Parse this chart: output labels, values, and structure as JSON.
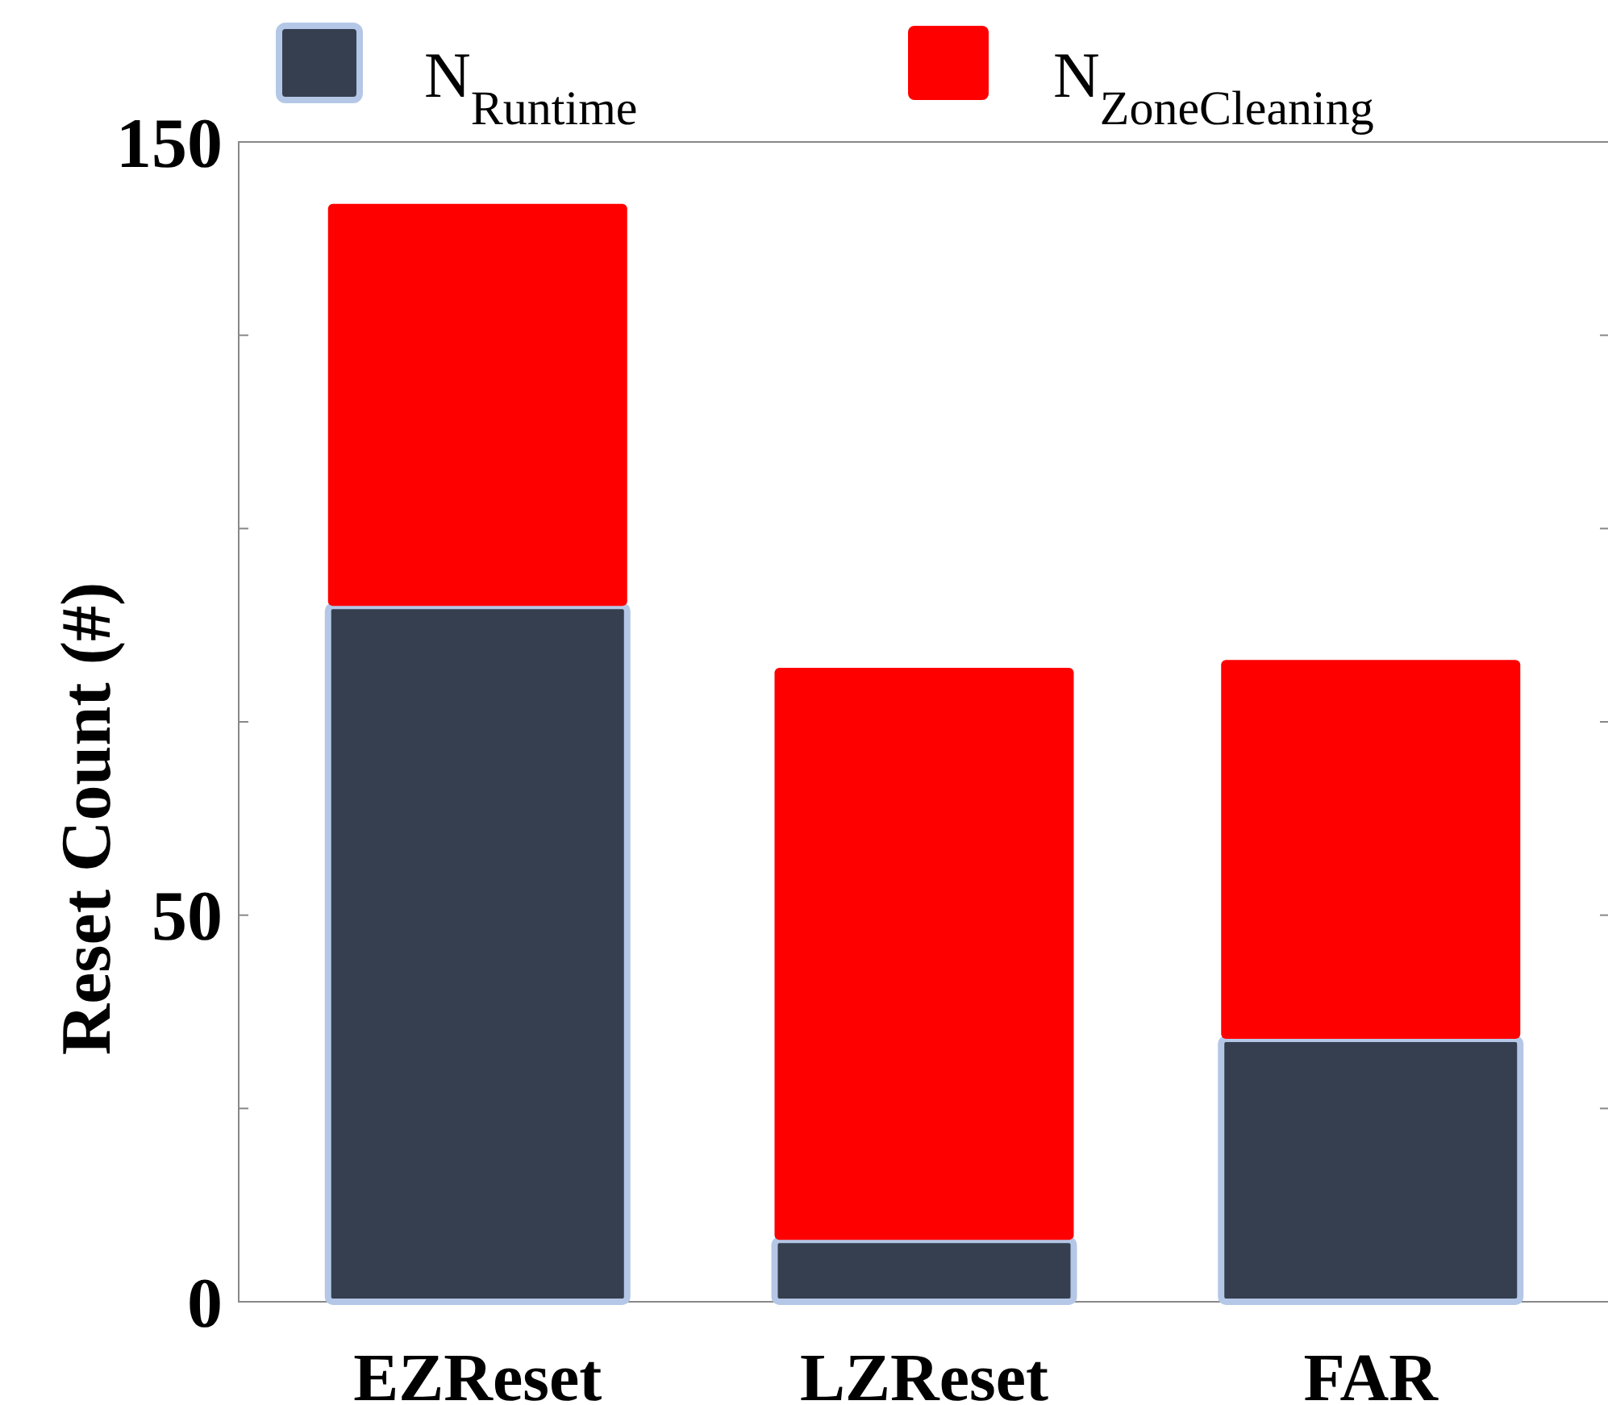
{
  "chart_data": {
    "type": "bar",
    "stacked": true,
    "ylabel": "Reset Count (#)",
    "categories": [
      "EZReset",
      "LZReset",
      "FAR"
    ],
    "series": [
      {
        "name": "N$_{Runtime}$",
        "color": "#353f4f",
        "values": [
          90,
          8,
          34
        ]
      },
      {
        "name": "N$_{ZoneCleaning}$",
        "color": "#ff0000",
        "values": [
          52,
          74,
          49
        ]
      }
    ],
    "ylim": [
      0,
      150
    ],
    "yticks": [
      0,
      {
        "value": 25,
        "label": null
      },
      50,
      {
        "value": 75,
        "label": null
      },
      {
        "value": 100,
        "label": null
      },
      {
        "value": 125,
        "label": null
      },
      150
    ],
    "grid": false,
    "legend": "top"
  }
}
